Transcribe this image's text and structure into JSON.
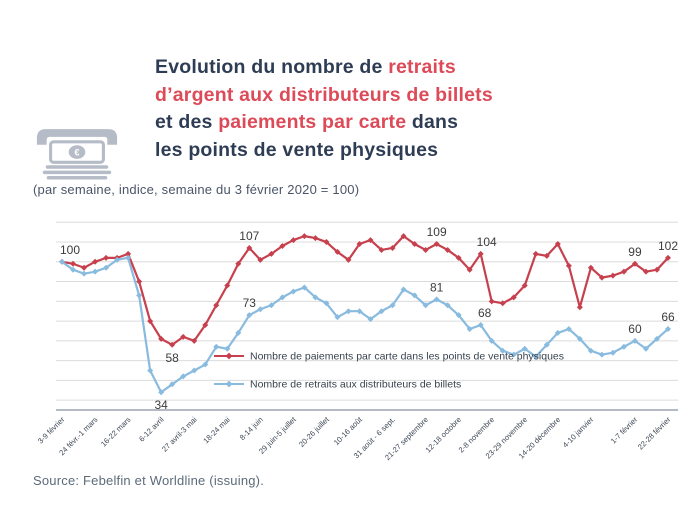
{
  "header": {
    "title_lines": [
      [
        {
          "text": "Evolution du nombre de ",
          "color": "navy"
        },
        {
          "text": "retraits",
          "color": "red"
        }
      ],
      [
        {
          "text": "d’argent aux distributeurs de billets",
          "color": "red"
        }
      ],
      [
        {
          "text": "et des ",
          "color": "navy"
        },
        {
          "text": "paiements par carte",
          "color": "red"
        },
        {
          "text": " dans",
          "color": "navy"
        }
      ],
      [
        {
          "text": "les points de vente physiques",
          "color": "navy"
        }
      ]
    ],
    "subtitle": "(par semaine, indice, semaine du 3 février 2020 = 100)",
    "icon": "cash-withdrawal-euro-icon"
  },
  "footer": {
    "source": "Source: Febelfin et Worldline (issuing)."
  },
  "colors": {
    "title_navy": "#2e3d54",
    "title_red": "#dd4a58",
    "card_payments_line": "#c7404e",
    "cash_withdrawals_line": "#89bbdf",
    "gridline": "#dcdcdc",
    "axis_line": "#9aa3ad",
    "value_label": "#3c3c3c",
    "x_tick_label": "#3e4856",
    "legend_text": "#39434e",
    "icon_gray": "#b5bcc7"
  },
  "chart_data": {
    "type": "line",
    "x_axis_note": "semaines de '3-9 février' 2020 à '22-28 février' 2021",
    "n_points": 56,
    "ylim": [
      25,
      120
    ],
    "grid": "horizontal",
    "gridline_values": [
      30,
      40,
      50,
      60,
      70,
      80,
      90,
      100,
      110,
      120
    ],
    "y_axis_tick_labels_visible": false,
    "legend_position": "inside-lower-center",
    "x_ticks": [
      {
        "index": 0,
        "label": "3-9 février"
      },
      {
        "index": 3,
        "label": "24 févr.-1 mars"
      },
      {
        "index": 6,
        "label": "16-22 mars"
      },
      {
        "index": 9,
        "label": "6-12 avril"
      },
      {
        "index": 12,
        "label": "27 avril-3 mai"
      },
      {
        "index": 15,
        "label": "18-24 mai"
      },
      {
        "index": 18,
        "label": "8-14 juin"
      },
      {
        "index": 21,
        "label": "29 juin-5 juillet"
      },
      {
        "index": 24,
        "label": "20-26 juillet"
      },
      {
        "index": 27,
        "label": "10-16 août"
      },
      {
        "index": 30,
        "label": "31 août - 6 sept."
      },
      {
        "index": 33,
        "label": "21-27 septembre"
      },
      {
        "index": 36,
        "label": "12-18 octobre"
      },
      {
        "index": 39,
        "label": "2-8 novembre"
      },
      {
        "index": 42,
        "label": "23-29 novembre"
      },
      {
        "index": 45,
        "label": "14-20 décembre"
      },
      {
        "index": 48,
        "label": "4-10 janvier"
      },
      {
        "index": 52,
        "label": "1-7 février"
      },
      {
        "index": 55,
        "label": "22-28 février"
      }
    ],
    "series": [
      {
        "name": "Nombre de paiements par carte dans les points de vente physiques",
        "color": "#c7404e",
        "marker": "diamond",
        "values": [
          100,
          99,
          97,
          100,
          102,
          102,
          104,
          90,
          70,
          61,
          58,
          62,
          60,
          68,
          78,
          88,
          99,
          107,
          101,
          104,
          108,
          111,
          113,
          112,
          110,
          105,
          101,
          109,
          111,
          106,
          107,
          113,
          109,
          106,
          109,
          106,
          102,
          96,
          104,
          80,
          79,
          82,
          88,
          104,
          103,
          109,
          98,
          77,
          97,
          92,
          93,
          95,
          99,
          95,
          96,
          102
        ],
        "point_labels": [
          {
            "index": 0,
            "text": "100",
            "placement": "above",
            "dx": 8
          },
          {
            "index": 10,
            "text": "58",
            "placement": "below"
          },
          {
            "index": 17,
            "text": "107",
            "placement": "above"
          },
          {
            "index": 34,
            "text": "109",
            "placement": "above"
          },
          {
            "index": 38,
            "text": "104",
            "placement": "above",
            "dx": 6
          },
          {
            "index": 52,
            "text": "99",
            "placement": "above"
          },
          {
            "index": 55,
            "text": "102",
            "placement": "above"
          }
        ]
      },
      {
        "name": "Nombre de retraits aux distributeurs de billets",
        "color": "#89bbdf",
        "marker": "diamond",
        "values": [
          100,
          96,
          94,
          95,
          97,
          101,
          102,
          83,
          45,
          34,
          38,
          42,
          45,
          48,
          57,
          56,
          64,
          73,
          76,
          78,
          82,
          85,
          87,
          82,
          79,
          72,
          75,
          75,
          71,
          75,
          78,
          86,
          83,
          78,
          81,
          78,
          73,
          66,
          68,
          60,
          55,
          53,
          56,
          52,
          58,
          64,
          66,
          61,
          55,
          53,
          54,
          57,
          60,
          56,
          61,
          66
        ],
        "point_labels": [
          {
            "index": 9,
            "text": "34",
            "placement": "below"
          },
          {
            "index": 17,
            "text": "73",
            "placement": "above"
          },
          {
            "index": 34,
            "text": "81",
            "placement": "above"
          },
          {
            "index": 38,
            "text": "68",
            "placement": "above",
            "dx": 4
          },
          {
            "index": 52,
            "text": "60",
            "placement": "above"
          },
          {
            "index": 55,
            "text": "66",
            "placement": "above"
          }
        ]
      }
    ]
  }
}
